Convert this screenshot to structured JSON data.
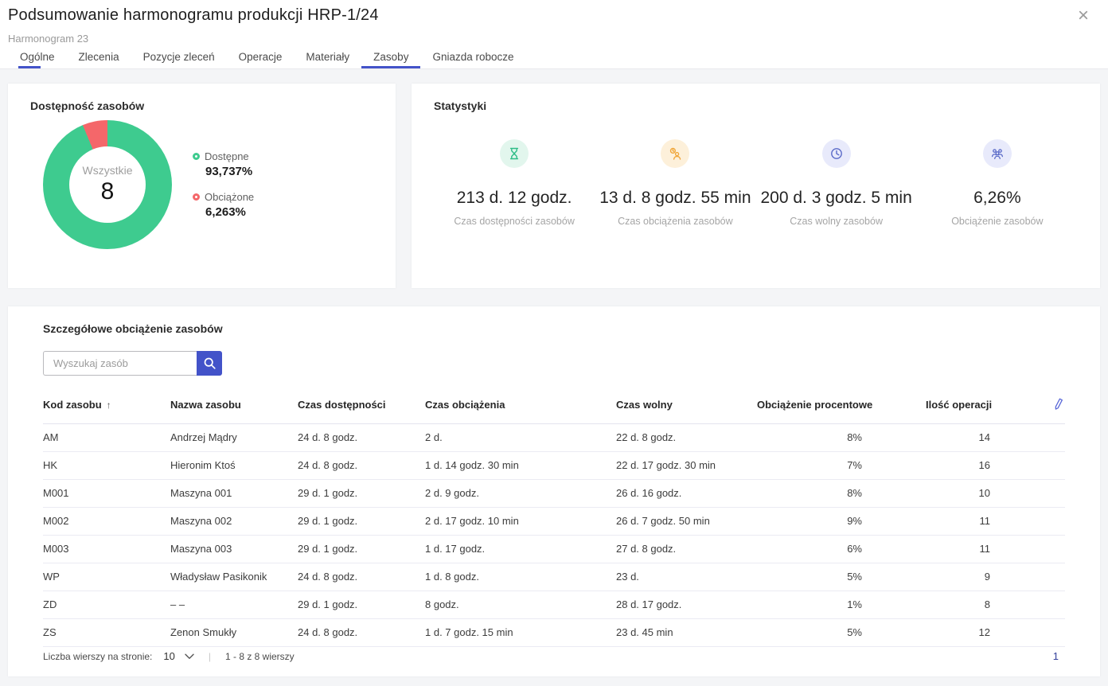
{
  "header": {
    "title": "Podsumowanie harmonogramu produkcji HRP-1/24",
    "subtitle": "Harmonogram 23",
    "close_glyph": "×",
    "active_tab": "Zasoby",
    "tabs": [
      {
        "label": "Ogólne"
      },
      {
        "label": "Zlecenia"
      },
      {
        "label": "Pozycje zleceń"
      },
      {
        "label": "Operacje"
      },
      {
        "label": "Materiały"
      },
      {
        "label": "Zasoby"
      },
      {
        "label": "Gniazda robocze"
      }
    ]
  },
  "chart_data": {
    "type": "pie",
    "donut": true,
    "title": "Dostępność zasobów",
    "labels": [
      "Dostępne",
      "Obciążone"
    ],
    "values": [
      93.737,
      6.263
    ],
    "colors": [
      "#3ecb8f",
      "#f4676a"
    ],
    "center_label": "Wszystkie",
    "center_value": "8",
    "legend_position": "right"
  },
  "availability_card": {
    "title": "Dostępność zasobów",
    "center_label": "Wszystkie",
    "center_value": "8",
    "legend": [
      {
        "label": "Dostępne",
        "value": "93,737%",
        "color": "#3ecb8f"
      },
      {
        "label": "Obciążone",
        "value": "6,263%",
        "color": "#f4676a"
      }
    ]
  },
  "stats_card": {
    "title": "Statystyki",
    "items": [
      {
        "icon": "hourglass-icon",
        "value": "213 d. 12 godz.",
        "label": "Czas dostępności zasobów",
        "color": "#2fbd88",
        "bg": "#e2f6ed"
      },
      {
        "icon": "user-clock-icon",
        "value": "13 d. 8 godz. 55 min",
        "label": "Czas obciążenia zasobów",
        "color": "#f0a63a",
        "bg": "#fdf0da"
      },
      {
        "icon": "clock-icon",
        "value": "200 d. 3 godz. 5 min",
        "label": "Czas wolny zasobów",
        "color": "#5b6bc8",
        "bg": "#e8eafb"
      },
      {
        "icon": "group-icon",
        "value": "6,26%",
        "label": "Obciążenie zasobów",
        "color": "#5b6bc8",
        "bg": "#e8eafb"
      }
    ]
  },
  "table_card": {
    "title": "Szczegółowe obciążenie zasobów",
    "search_placeholder": "Wyszukaj zasób",
    "sort_column": "Kod zasobu",
    "sort_direction": "asc",
    "sort_indicator": "↑",
    "columns": [
      "Kod zasobu",
      "Nazwa zasobu",
      "Czas dostępności",
      "Czas obciążenia",
      "Czas wolny",
      "Obciążenie procentowe",
      "Ilość operacji"
    ],
    "rows": [
      [
        "AM",
        "Andrzej Mądry",
        "24 d. 8 godz.",
        "2 d.",
        "22 d. 8 godz.",
        "8%",
        "14"
      ],
      [
        "HK",
        "Hieronim Ktoś",
        "24 d. 8 godz.",
        "1 d. 14 godz. 30 min",
        "22 d. 17 godz. 30 min",
        "7%",
        "16"
      ],
      [
        "M001",
        "Maszyna 001",
        "29 d. 1 godz.",
        "2 d. 9 godz.",
        "26 d. 16 godz.",
        "8%",
        "10"
      ],
      [
        "M002",
        "Maszyna 002",
        "29 d. 1 godz.",
        "2 d. 17 godz. 10 min",
        "26 d. 7 godz. 50 min",
        "9%",
        "11"
      ],
      [
        "M003",
        "Maszyna 003",
        "29 d. 1 godz.",
        "1 d. 17 godz.",
        "27 d. 8 godz.",
        "6%",
        "11"
      ],
      [
        "WP",
        "Władysław Pasikonik",
        "24 d. 8 godz.",
        "1 d. 8 godz.",
        "23 d.",
        "5%",
        "9"
      ],
      [
        "ZD",
        "– –",
        "29 d. 1 godz.",
        "8 godz.",
        "28 d. 17 godz.",
        "1%",
        "8"
      ],
      [
        "ZS",
        "Zenon Smukły",
        "24 d. 8 godz.",
        "1 d. 7 godz. 15 min",
        "23 d. 45 min",
        "5%",
        "12"
      ]
    ],
    "pagination": {
      "rows_per_page_label": "Liczba wierszy na stronie:",
      "rows_per_page": "10",
      "separator": "|",
      "range_label": "1 - 8 z 8 wierszy",
      "current_page": "1"
    }
  }
}
